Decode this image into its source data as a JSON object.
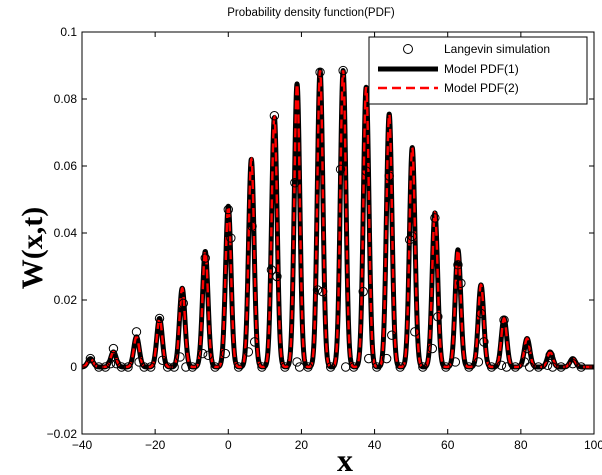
{
  "chart_data": {
    "type": "line",
    "title": "Probability density function(PDF)",
    "xlabel": "x",
    "ylabel": "W(x,t)",
    "xlim": [
      -40,
      100
    ],
    "ylim": [
      -0.02,
      0.1
    ],
    "xticks": [
      -40,
      -20,
      0,
      20,
      40,
      60,
      80,
      100
    ],
    "yticks": [
      -0.02,
      0,
      0.02,
      0.04,
      0.06,
      0.08,
      0.1
    ],
    "xtick_labels": [
      "−40",
      "−20",
      "0",
      "20",
      "40",
      "60",
      "80",
      "100"
    ],
    "ytick_labels": [
      "−0.02",
      "0",
      "0.02",
      "0.04",
      "0.06",
      "0.08",
      "0.1"
    ],
    "legend_position": "top-right",
    "grid": false,
    "peaks": {
      "x": [
        -37.7,
        -31.4,
        -25.1,
        -18.8,
        -12.6,
        -6.3,
        0,
        6.3,
        12.6,
        18.8,
        25.1,
        31.4,
        37.7,
        44.0,
        50.3,
        56.5,
        62.8,
        69.1,
        75.4,
        81.7,
        88.0,
        94.2
      ],
      "height": [
        0.0025,
        0.0045,
        0.009,
        0.0145,
        0.0235,
        0.0345,
        0.048,
        0.062,
        0.0745,
        0.0845,
        0.0885,
        0.0885,
        0.0835,
        0.0755,
        0.0655,
        0.046,
        0.035,
        0.0245,
        0.0145,
        0.0085,
        0.0045,
        0.0025
      ],
      "width": 0.75
    },
    "series": [
      {
        "name": "Langevin simulation",
        "style": "markers",
        "marker": "circle",
        "color": "#000000"
      },
      {
        "name": "Model PDF(1)",
        "style": "solid",
        "color": "#000000"
      },
      {
        "name": "Model PDF(2)",
        "style": "dashed",
        "color": "#ff0000"
      }
    ],
    "markers": [
      {
        "x": -37.7,
        "y": 0.0025
      },
      {
        "x": -35.4,
        "y": 0.0
      },
      {
        "x": -33.6,
        "y": 0.0
      },
      {
        "x": -32.2,
        "y": 0.001
      },
      {
        "x": -31.4,
        "y": 0.0055
      },
      {
        "x": -30.6,
        "y": 0.001
      },
      {
        "x": -29.2,
        "y": 0.0
      },
      {
        "x": -27.4,
        "y": 0.0
      },
      {
        "x": -25.1,
        "y": 0.0105
      },
      {
        "x": -24.4,
        "y": 0.0015
      },
      {
        "x": -23.0,
        "y": 0.0
      },
      {
        "x": -21.2,
        "y": 0.0
      },
      {
        "x": -18.8,
        "y": 0.0145
      },
      {
        "x": -18.0,
        "y": 0.002
      },
      {
        "x": -16.6,
        "y": 0.0
      },
      {
        "x": -14.8,
        "y": 0.0
      },
      {
        "x": -13.2,
        "y": 0.003
      },
      {
        "x": -12.3,
        "y": 0.019
      },
      {
        "x": -11.6,
        "y": 0.0
      },
      {
        "x": -9.8,
        "y": 0.0
      },
      {
        "x": -7.0,
        "y": 0.004
      },
      {
        "x": -6.3,
        "y": 0.0325
      },
      {
        "x": -5.5,
        "y": 0.0035
      },
      {
        "x": -3.6,
        "y": 0.0
      },
      {
        "x": -0.8,
        "y": 0.004
      },
      {
        "x": 0.0,
        "y": 0.047
      },
      {
        "x": 0.7,
        "y": 0.0385
      },
      {
        "x": 2.8,
        "y": 0.0
      },
      {
        "x": 5.5,
        "y": 0.0045
      },
      {
        "x": 6.5,
        "y": 0.042
      },
      {
        "x": 7.2,
        "y": 0.0075
      },
      {
        "x": 9.2,
        "y": 0.0
      },
      {
        "x": 11.8,
        "y": 0.029
      },
      {
        "x": 12.6,
        "y": 0.075
      },
      {
        "x": 13.3,
        "y": 0.027
      },
      {
        "x": 15.5,
        "y": 0.0
      },
      {
        "x": 18.2,
        "y": 0.055
      },
      {
        "x": 18.8,
        "y": 0.0015
      },
      {
        "x": 19.5,
        "y": 0.0
      },
      {
        "x": 21.8,
        "y": 0.0
      },
      {
        "x": 24.4,
        "y": 0.023
      },
      {
        "x": 25.1,
        "y": 0.088
      },
      {
        "x": 25.8,
        "y": 0.0225
      },
      {
        "x": 28.0,
        "y": 0.0
      },
      {
        "x": 30.7,
        "y": 0.059
      },
      {
        "x": 31.4,
        "y": 0.0885
      },
      {
        "x": 32.1,
        "y": 0.0
      },
      {
        "x": 34.3,
        "y": 0.0
      },
      {
        "x": 36.9,
        "y": 0.0225
      },
      {
        "x": 37.7,
        "y": 0.0585
      },
      {
        "x": 38.4,
        "y": 0.0025
      },
      {
        "x": 40.6,
        "y": 0.0
      },
      {
        "x": 43.3,
        "y": 0.0025
      },
      {
        "x": 44.0,
        "y": 0.057
      },
      {
        "x": 44.7,
        "y": 0.0095
      },
      {
        "x": 47.0,
        "y": 0.0
      },
      {
        "x": 49.6,
        "y": 0.038
      },
      {
        "x": 50.3,
        "y": 0.039
      },
      {
        "x": 51.0,
        "y": 0.0105
      },
      {
        "x": 53.2,
        "y": 0.0
      },
      {
        "x": 55.8,
        "y": 0.0055
      },
      {
        "x": 56.5,
        "y": 0.0445
      },
      {
        "x": 57.3,
        "y": 0.015
      },
      {
        "x": 59.5,
        "y": 0.0
      },
      {
        "x": 62.1,
        "y": 0.0015
      },
      {
        "x": 62.8,
        "y": 0.0305
      },
      {
        "x": 63.6,
        "y": 0.025
      },
      {
        "x": 65.8,
        "y": 0.0
      },
      {
        "x": 68.4,
        "y": 0.0015
      },
      {
        "x": 69.1,
        "y": 0.016
      },
      {
        "x": 69.9,
        "y": 0.0075
      },
      {
        "x": 72.0,
        "y": 0.0
      },
      {
        "x": 74.7,
        "y": 0.0005
      },
      {
        "x": 75.4,
        "y": 0.014
      },
      {
        "x": 76.1,
        "y": 0.0
      },
      {
        "x": 78.5,
        "y": 0.0
      },
      {
        "x": 81.0,
        "y": 0.0015
      },
      {
        "x": 81.7,
        "y": 0.0055
      },
      {
        "x": 82.4,
        "y": 0.0
      },
      {
        "x": 84.8,
        "y": 0.0
      },
      {
        "x": 87.3,
        "y": 0.0005
      },
      {
        "x": 88.0,
        "y": 0.0035
      },
      {
        "x": 88.7,
        "y": 0.0
      },
      {
        "x": 91.0,
        "y": 0.0
      },
      {
        "x": 94.2,
        "y": 0.001
      },
      {
        "x": 96.5,
        "y": 0.0
      }
    ]
  }
}
